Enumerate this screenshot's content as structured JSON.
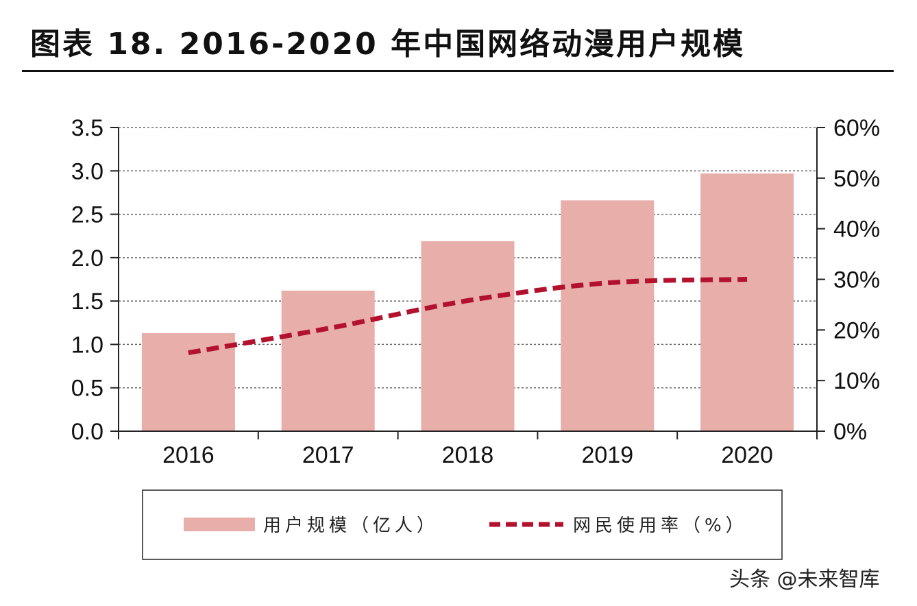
{
  "title": "图表 18. 2016-2020 年中国网络动漫用户规模",
  "watermark": "头条 @未来智库",
  "colors": {
    "bar": "#e8aeaa",
    "line": "#b3122e",
    "grid": "#666666",
    "axis": "#222222"
  },
  "chart_data": {
    "type": "bar",
    "categories": [
      "2016",
      "2017",
      "2018",
      "2019",
      "2020"
    ],
    "series": [
      {
        "name": "用户规模（亿人）",
        "type": "bar",
        "axis": "left",
        "values": [
          1.13,
          1.62,
          2.19,
          2.66,
          2.97
        ]
      },
      {
        "name": "网民使用率（%）",
        "type": "line",
        "axis": "right",
        "style": "dashed",
        "values": [
          15.5,
          20.3,
          25.8,
          29.3,
          30.0
        ]
      }
    ],
    "y_left": {
      "min": 0,
      "max": 3.5,
      "ticks": [
        "0.0",
        "0.5",
        "1.0",
        "1.5",
        "2.0",
        "2.5",
        "3.0",
        "3.5"
      ]
    },
    "y_right": {
      "min": 0,
      "max": 60,
      "ticks": [
        "0%",
        "10%",
        "20%",
        "30%",
        "40%",
        "50%",
        "60%"
      ]
    },
    "grid": true,
    "legend_position": "bottom"
  }
}
